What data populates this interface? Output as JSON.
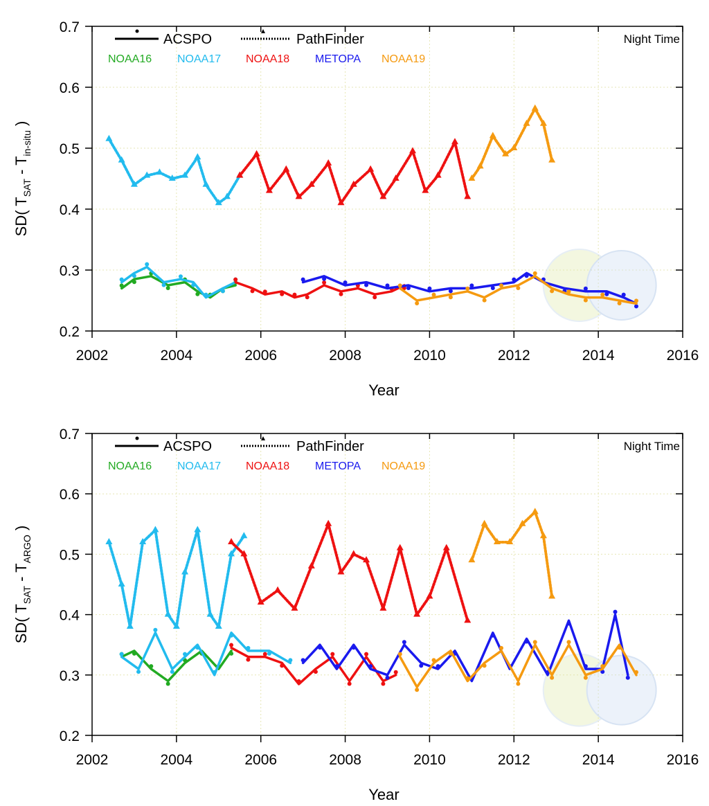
{
  "chart_data": [
    {
      "type": "line",
      "xlabel": "Year",
      "ylabel_main": "SD( T",
      "ylabel_sub1": "SAT",
      "ylabel_mid": " - T",
      "ylabel_sub2": "in-situ",
      "ylabel_end": " )",
      "annotation": "Night Time",
      "legend_styles": [
        "ACSPO",
        "PathFinder"
      ],
      "legend_sats": [
        {
          "name": "NOAA16",
          "color": "#22aa22"
        },
        {
          "name": "NOAA17",
          "color": "#22bbee"
        },
        {
          "name": "NOAA18",
          "color": "#ee1111"
        },
        {
          "name": "METOPA",
          "color": "#1a1aee"
        },
        {
          "name": "NOAA19",
          "color": "#f59a10"
        }
      ],
      "xlim": [
        2002,
        2016
      ],
      "ylim": [
        0.2,
        0.7
      ],
      "xticks": [
        "2002",
        "2004",
        "2006",
        "2008",
        "2010",
        "2012",
        "2014",
        "2016"
      ],
      "yticks": [
        "0.2",
        "0.3",
        "0.4",
        "0.5",
        "0.6",
        "0.7"
      ],
      "series": [
        {
          "name": "NOAA17",
          "style": "PathFinder",
          "color": "#22bbee",
          "x": [
            2002.4,
            2002.7,
            2003.0,
            2003.3,
            2003.6,
            2003.9,
            2004.2,
            2004.5,
            2004.7,
            2005.0,
            2005.2,
            2005.5
          ],
          "y": [
            0.515,
            0.48,
            0.44,
            0.455,
            0.46,
            0.45,
            0.455,
            0.485,
            0.44,
            0.41,
            0.42,
            0.455
          ]
        },
        {
          "name": "NOAA18",
          "style": "PathFinder",
          "color": "#ee1111",
          "x": [
            2005.5,
            2005.9,
            2006.2,
            2006.6,
            2006.9,
            2007.2,
            2007.6,
            2007.9,
            2008.2,
            2008.6,
            2008.9,
            2009.2,
            2009.6,
            2009.9,
            2010.2,
            2010.6,
            2010.9
          ],
          "y": [
            0.455,
            0.49,
            0.43,
            0.465,
            0.42,
            0.44,
            0.475,
            0.41,
            0.44,
            0.465,
            0.42,
            0.45,
            0.495,
            0.43,
            0.455,
            0.51,
            0.42
          ]
        },
        {
          "name": "NOAA19",
          "style": "PathFinder",
          "color": "#f59a10",
          "x": [
            2011.0,
            2011.2,
            2011.5,
            2011.8,
            2012.0,
            2012.3,
            2012.5,
            2012.7,
            2012.9
          ],
          "y": [
            0.45,
            0.47,
            0.52,
            0.49,
            0.5,
            0.54,
            0.565,
            0.54,
            0.48
          ]
        },
        {
          "name": "NOAA16",
          "style": "ACSPO",
          "color": "#22aa22",
          "x": [
            2002.7,
            2003.0,
            2003.4,
            2003.8,
            2004.2,
            2004.5,
            2004.8,
            2005.1,
            2005.4
          ],
          "y": [
            0.27,
            0.285,
            0.29,
            0.275,
            0.28,
            0.265,
            0.255,
            0.27,
            0.275
          ]
        },
        {
          "name": "NOAA17",
          "style": "ACSPO",
          "color": "#22bbee",
          "x": [
            2002.7,
            2003.0,
            2003.3,
            2003.7,
            2004.1,
            2004.4,
            2004.7,
            2005.1,
            2005.4
          ],
          "y": [
            0.28,
            0.295,
            0.305,
            0.28,
            0.285,
            0.28,
            0.255,
            0.27,
            0.28
          ]
        },
        {
          "name": "NOAA18",
          "style": "ACSPO",
          "color": "#ee1111",
          "x": [
            2005.4,
            2005.8,
            2006.1,
            2006.5,
            2006.8,
            2007.1,
            2007.5,
            2007.9,
            2008.3,
            2008.7,
            2009.1,
            2009.4
          ],
          "y": [
            0.28,
            0.27,
            0.26,
            0.265,
            0.255,
            0.26,
            0.275,
            0.265,
            0.27,
            0.26,
            0.265,
            0.275
          ]
        },
        {
          "name": "METOPA",
          "style": "ACSPO",
          "color": "#1a1aee",
          "x": [
            2007.0,
            2007.5,
            2008.0,
            2008.5,
            2009.0,
            2009.5,
            2010.0,
            2010.5,
            2011.0,
            2011.5,
            2012.0,
            2012.3,
            2012.7,
            2013.2,
            2013.7,
            2014.2,
            2014.6,
            2014.9
          ],
          "y": [
            0.28,
            0.29,
            0.275,
            0.28,
            0.27,
            0.275,
            0.265,
            0.27,
            0.27,
            0.275,
            0.28,
            0.295,
            0.28,
            0.27,
            0.265,
            0.265,
            0.255,
            0.245
          ]
        },
        {
          "name": "NOAA19",
          "style": "ACSPO",
          "color": "#f59a10",
          "x": [
            2009.3,
            2009.7,
            2010.1,
            2010.5,
            2010.9,
            2011.3,
            2011.7,
            2012.1,
            2012.5,
            2012.9,
            2013.3,
            2013.7,
            2014.1,
            2014.5,
            2014.9
          ],
          "y": [
            0.27,
            0.25,
            0.255,
            0.26,
            0.265,
            0.255,
            0.27,
            0.275,
            0.29,
            0.27,
            0.26,
            0.255,
            0.255,
            0.25,
            0.245
          ]
        }
      ]
    },
    {
      "type": "line",
      "xlabel": "Year",
      "ylabel_main": "SD( T",
      "ylabel_sub1": "SAT",
      "ylabel_mid": " - T",
      "ylabel_sub2": "ARGO",
      "ylabel_end": " )",
      "annotation": "Night Time",
      "legend_styles": [
        "ACSPO",
        "PathFinder"
      ],
      "legend_sats": [
        {
          "name": "NOAA16",
          "color": "#22aa22"
        },
        {
          "name": "NOAA17",
          "color": "#22bbee"
        },
        {
          "name": "NOAA18",
          "color": "#ee1111"
        },
        {
          "name": "METOPA",
          "color": "#1a1aee"
        },
        {
          "name": "NOAA19",
          "color": "#f59a10"
        }
      ],
      "xlim": [
        2002,
        2016
      ],
      "ylim": [
        0.2,
        0.7
      ],
      "xticks": [
        "2002",
        "2004",
        "2006",
        "2008",
        "2010",
        "2012",
        "2014",
        "2016"
      ],
      "yticks": [
        "0.2",
        "0.3",
        "0.4",
        "0.5",
        "0.6",
        "0.7"
      ],
      "series": [
        {
          "name": "NOAA17",
          "style": "PathFinder",
          "color": "#22bbee",
          "x": [
            2002.4,
            2002.7,
            2002.9,
            2003.2,
            2003.5,
            2003.8,
            2004.0,
            2004.2,
            2004.5,
            2004.8,
            2005.0,
            2005.3,
            2005.6
          ],
          "y": [
            0.52,
            0.45,
            0.38,
            0.52,
            0.54,
            0.4,
            0.38,
            0.47,
            0.54,
            0.4,
            0.38,
            0.5,
            0.53
          ]
        },
        {
          "name": "NOAA18",
          "style": "PathFinder",
          "color": "#ee1111",
          "x": [
            2005.3,
            2005.6,
            2006.0,
            2006.4,
            2006.8,
            2007.2,
            2007.6,
            2007.9,
            2008.2,
            2008.5,
            2008.9,
            2009.3,
            2009.7,
            2010.0,
            2010.4,
            2010.9
          ],
          "y": [
            0.52,
            0.5,
            0.42,
            0.44,
            0.41,
            0.48,
            0.55,
            0.47,
            0.5,
            0.49,
            0.41,
            0.51,
            0.4,
            0.43,
            0.51,
            0.39
          ]
        },
        {
          "name": "NOAA19",
          "style": "PathFinder",
          "color": "#f59a10",
          "x": [
            2011.0,
            2011.3,
            2011.6,
            2011.9,
            2012.2,
            2012.5,
            2012.7,
            2012.9
          ],
          "y": [
            0.49,
            0.55,
            0.52,
            0.52,
            0.55,
            0.57,
            0.53,
            0.43
          ]
        },
        {
          "name": "NOAA16",
          "style": "ACSPO",
          "color": "#22aa22",
          "x": [
            2002.7,
            2003.0,
            2003.4,
            2003.8,
            2004.2,
            2004.6,
            2005.0,
            2005.3
          ],
          "y": [
            0.33,
            0.34,
            0.31,
            0.29,
            0.32,
            0.34,
            0.31,
            0.34
          ]
        },
        {
          "name": "NOAA17",
          "style": "ACSPO",
          "color": "#22bbee",
          "x": [
            2002.7,
            2003.1,
            2003.5,
            2003.9,
            2004.2,
            2004.5,
            2004.9,
            2005.3,
            2005.7,
            2006.2,
            2006.7
          ],
          "y": [
            0.33,
            0.31,
            0.37,
            0.31,
            0.33,
            0.35,
            0.3,
            0.37,
            0.34,
            0.34,
            0.32
          ]
        },
        {
          "name": "NOAA18",
          "style": "ACSPO",
          "color": "#ee1111",
          "x": [
            2005.3,
            2005.7,
            2006.1,
            2006.5,
            2006.9,
            2007.3,
            2007.7,
            2008.1,
            2008.5,
            2008.9,
            2009.2
          ],
          "y": [
            0.345,
            0.33,
            0.33,
            0.32,
            0.285,
            0.31,
            0.33,
            0.29,
            0.33,
            0.29,
            0.3
          ]
        },
        {
          "name": "METOPA",
          "style": "ACSPO",
          "color": "#1a1aee",
          "x": [
            2007.0,
            2007.4,
            2007.8,
            2008.2,
            2008.6,
            2009.0,
            2009.4,
            2009.8,
            2010.2,
            2010.6,
            2011.0,
            2011.5,
            2011.9,
            2012.3,
            2012.8,
            2013.3,
            2013.7,
            2014.1,
            2014.4,
            2014.7
          ],
          "y": [
            0.32,
            0.35,
            0.31,
            0.35,
            0.31,
            0.3,
            0.35,
            0.32,
            0.31,
            0.34,
            0.29,
            0.37,
            0.31,
            0.36,
            0.3,
            0.39,
            0.31,
            0.31,
            0.4,
            0.3
          ]
        },
        {
          "name": "NOAA19",
          "style": "ACSPO",
          "color": "#f59a10",
          "x": [
            2009.3,
            2009.7,
            2010.1,
            2010.5,
            2010.9,
            2011.3,
            2011.7,
            2012.1,
            2012.5,
            2012.9,
            2013.3,
            2013.7,
            2014.1,
            2014.5,
            2014.9
          ],
          "y": [
            0.33,
            0.28,
            0.32,
            0.34,
            0.29,
            0.32,
            0.34,
            0.29,
            0.35,
            0.3,
            0.35,
            0.3,
            0.31,
            0.35,
            0.3
          ]
        }
      ]
    }
  ]
}
